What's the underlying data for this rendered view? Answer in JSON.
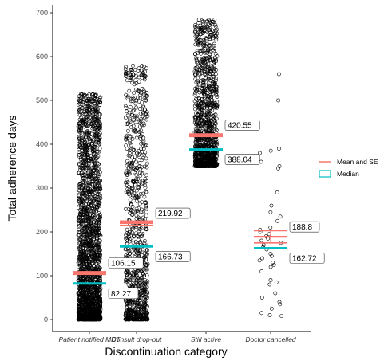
{
  "chart_data": {
    "type": "scatter",
    "xlabel": "Discontinuation category",
    "ylabel": "Total adherence days",
    "ylim": [
      0,
      720
    ],
    "yticks": [
      0,
      100,
      200,
      300,
      400,
      500,
      600,
      700
    ],
    "grid": false,
    "legend_position": "right",
    "categories": [
      "Patient notified MDT",
      "Consult drop-out",
      "Still active",
      "Doctor cancelled"
    ],
    "series": [
      {
        "name": "Mean and SE",
        "color": "#f8766d",
        "values": [
          106.15,
          219.92,
          420.55,
          188.8
        ],
        "labels": [
          "106.15",
          "219.92",
          "420.55",
          "188.8"
        ]
      },
      {
        "name": "Median",
        "color": "#00bfc4",
        "values": [
          82.27,
          166.73,
          388.04,
          162.72
        ],
        "labels": [
          "82.27",
          "166.73",
          "388.04",
          "162.72"
        ]
      }
    ],
    "standard_error_approx": [
      3,
      5,
      3,
      14
    ],
    "points": {
      "Patient notified MDT": {
        "range": [
          0,
          515
        ],
        "count_approx": 2200,
        "density": "decreasing"
      },
      "Consult drop-out": {
        "range": [
          0,
          580
        ],
        "count_approx": 900,
        "density": "decreasing"
      },
      "Still active": {
        "range": [
          350,
          685
        ],
        "count_approx": 1200,
        "density": "decreasing_from_min"
      },
      "Doctor cancelled": {
        "values": [
          560,
          500,
          390,
          385,
          380,
          360,
          350,
          345,
          290,
          260,
          245,
          235,
          225,
          210,
          205,
          200,
          195,
          190,
          185,
          180,
          175,
          170,
          165,
          160,
          150,
          145,
          140,
          135,
          130,
          125,
          120,
          110,
          90,
          85,
          80,
          60,
          50,
          40,
          35,
          25,
          15,
          10,
          8
        ]
      }
    }
  }
}
